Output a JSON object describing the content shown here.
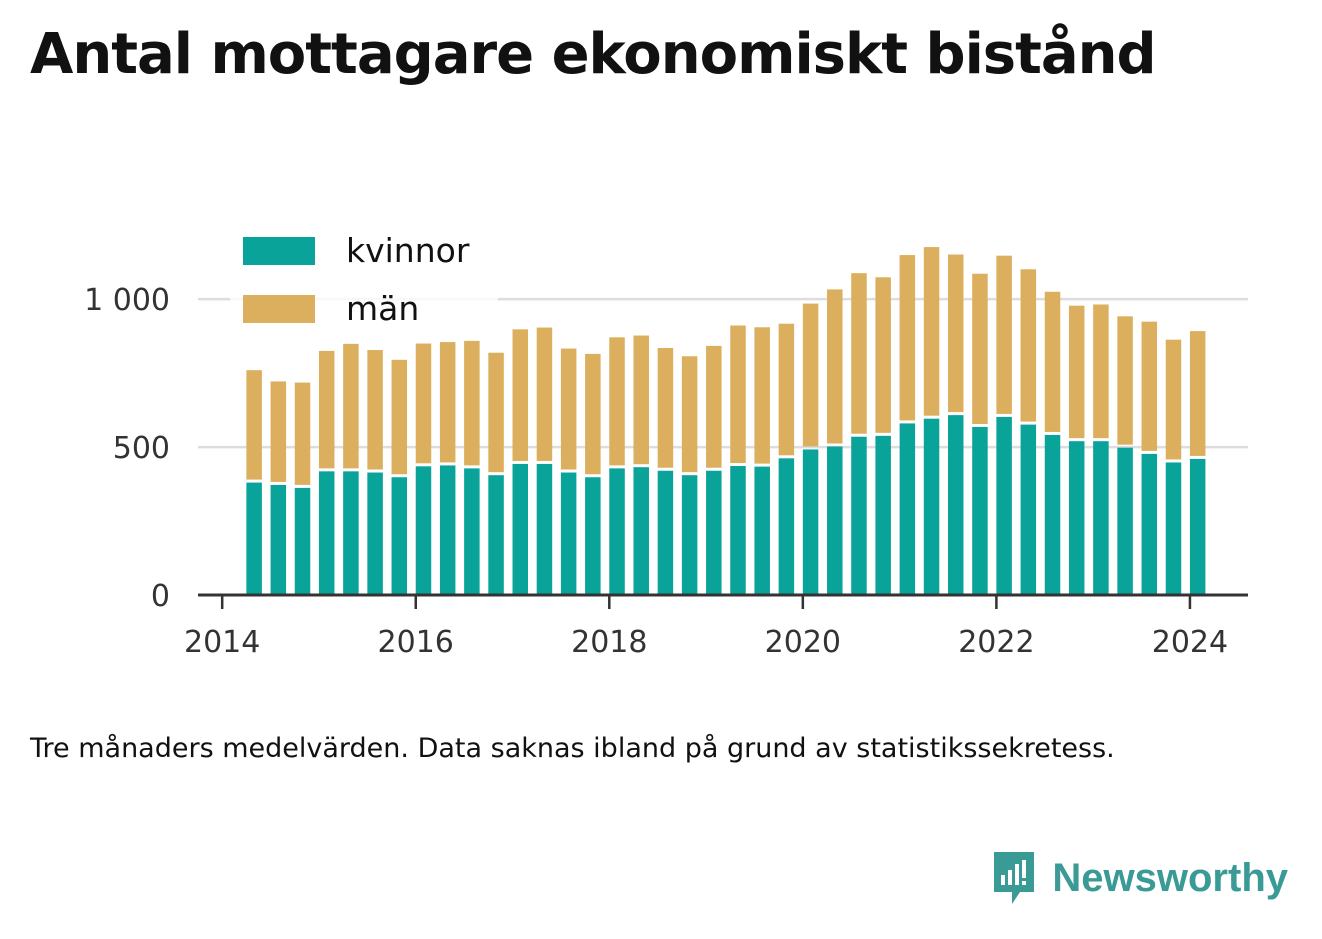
{
  "title": "Antal mottagare ekonomiskt bistånd",
  "note": "Tre månaders medelvärden. Data saknas ibland på grund av statistikssekretess.",
  "brand": "Newsworthy",
  "colors": {
    "kvinnor": "#0aa39a",
    "man": "#dbaf5d",
    "grid": "#dddddd",
    "axis": "#333333",
    "brand": "#3a9a95"
  },
  "chart_data": {
    "type": "bar",
    "stacked": true,
    "x": [
      2014.33,
      2014.58,
      2014.83,
      2015.08,
      2015.33,
      2015.58,
      2015.83,
      2016.08,
      2016.33,
      2016.58,
      2016.83,
      2017.08,
      2017.33,
      2017.58,
      2017.83,
      2018.08,
      2018.33,
      2018.58,
      2018.83,
      2019.08,
      2019.33,
      2019.58,
      2019.83,
      2020.08,
      2020.33,
      2020.58,
      2020.83,
      2021.08,
      2021.33,
      2021.58,
      2021.83,
      2022.08,
      2022.33,
      2022.58,
      2022.83,
      2023.08,
      2023.33,
      2023.58,
      2023.83,
      2024.08
    ],
    "series": [
      {
        "name": "kvinnor",
        "values": [
          380,
          372,
          362,
          418,
          418,
          414,
          398,
          435,
          438,
          428,
          405,
          443,
          443,
          414,
          398,
          428,
          432,
          420,
          405,
          420,
          436,
          434,
          462,
          492,
          502,
          535,
          538,
          580,
          596,
          608,
          568,
          602,
          576,
          541,
          520,
          520,
          498,
          477,
          448,
          460
        ]
      },
      {
        "name": "män",
        "values": [
          380,
          350,
          356,
          407,
          431,
          414,
          397,
          415,
          417,
          431,
          414,
          455,
          461,
          419,
          417,
          443,
          445,
          415,
          402,
          422,
          475,
          471,
          455,
          493,
          531,
          553,
          536,
          569,
          580,
          543,
          518,
          545,
          525,
          484,
          458,
          462,
          444,
          447,
          415,
          432
        ]
      }
    ],
    "xlim": [
      2013.75,
      2024.6
    ],
    "ylim": [
      0,
      1200
    ],
    "xticks": [
      2014,
      2016,
      2018,
      2020,
      2022,
      2024
    ],
    "xtick_labels": [
      "2014",
      "2016",
      "2018",
      "2020",
      "2022",
      "2024"
    ],
    "yticks": [
      0,
      500,
      1000
    ],
    "ytick_labels": [
      "0",
      "500",
      "1 000"
    ],
    "grid": true,
    "legend": "top-left"
  }
}
